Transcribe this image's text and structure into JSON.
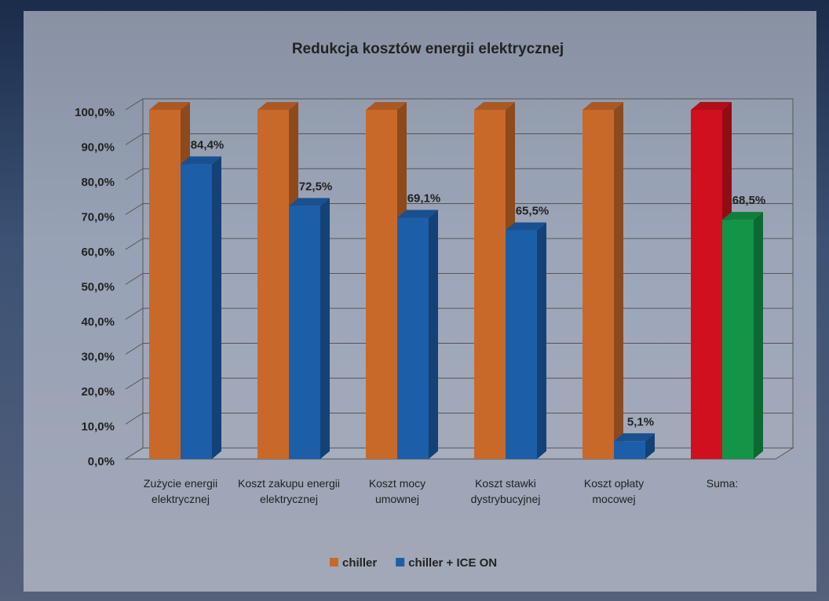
{
  "chart_data": {
    "type": "bar3d",
    "title": "Redukcja kosztów energii elektrycznej",
    "categories": [
      "Zużycie energii elektrycznej",
      "Koszt zakupu energii elektrycznej",
      "Koszt mocy umownej",
      "Koszt stawki dystrybucyjnej",
      "Koszt opłaty mocowej",
      "Suma:"
    ],
    "series": [
      {
        "name": "chiller",
        "color": "#c8692a",
        "colors": [
          "#c8692a",
          "#c8692a",
          "#c8692a",
          "#c8692a",
          "#c8692a",
          "#d0101e"
        ],
        "values": [
          100,
          100,
          100,
          100,
          100,
          100
        ]
      },
      {
        "name": "chiller + ICE ON",
        "color": "#1d5ea8",
        "colors": [
          "#1d5ea8",
          "#1d5ea8",
          "#1d5ea8",
          "#1d5ea8",
          "#1d5ea8",
          "#139447"
        ],
        "values": [
          84.4,
          72.5,
          69.1,
          65.5,
          5.1,
          68.5
        ],
        "value_labels": [
          "84,4%",
          "72,5%",
          "69,1%",
          "65,5%",
          "5,1%",
          "68,5%"
        ]
      }
    ],
    "ylim": [
      0,
      100
    ],
    "yticks": [
      {
        "value": 0,
        "label": "0,0%"
      },
      {
        "value": 10,
        "label": "10,0%"
      },
      {
        "value": 20,
        "label": "20,0%"
      },
      {
        "value": 30,
        "label": "30,0%"
      },
      {
        "value": 40,
        "label": "40,0%"
      },
      {
        "value": 50,
        "label": "50,0%"
      },
      {
        "value": 60,
        "label": "60,0%"
      },
      {
        "value": 70,
        "label": "70,0%"
      },
      {
        "value": 80,
        "label": "80,0%"
      },
      {
        "value": 90,
        "label": "90,0%"
      },
      {
        "value": 100,
        "label": "100,0%"
      }
    ],
    "grid": true,
    "legend": "bottom"
  }
}
